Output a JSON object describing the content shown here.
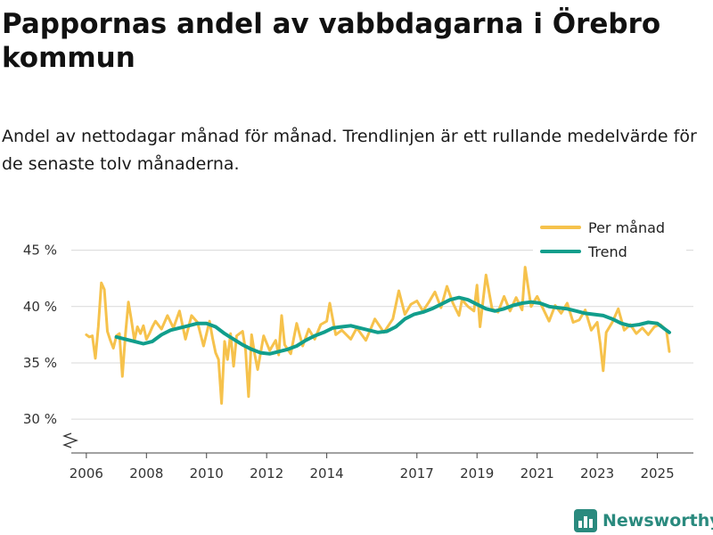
{
  "header": {
    "title": "Pappornas andel av vabbdagarna i Örebro kommun",
    "subtitle": "Andel av nettodagar månad för månad. Trendlinjen är ett rullande medelvärde för de senaste tolv månaderna."
  },
  "branding": {
    "name": "Newsworthy"
  },
  "colors": {
    "monthly": "#f6c24c",
    "trend": "#119e8c",
    "grid": "#d9d9d9",
    "brand": "#2a8a7e"
  },
  "chart_data": {
    "type": "line",
    "title": "Pappornas andel av vabbdagarna i Örebro kommun",
    "xlabel": "",
    "ylabel": "",
    "x_range": [
      2005.5,
      2026.2
    ],
    "ylim": [
      27,
      46
    ],
    "grid": true,
    "legend_position": "top-right",
    "y_ticks": [
      30,
      35,
      40,
      45
    ],
    "y_tick_labels": [
      "30 %",
      "35 %",
      "40 %",
      "45 %"
    ],
    "x_ticks": [
      2006,
      2008,
      2010,
      2012,
      2014,
      2017,
      2019,
      2021,
      2023,
      2025
    ],
    "x_tick_labels": [
      "2006",
      "2008",
      "2010",
      "2012",
      "2014",
      "2017",
      "2019",
      "2021",
      "2023",
      "2025"
    ],
    "series": [
      {
        "name": "Per månad",
        "x": [
          2006.0,
          2006.1,
          2006.2,
          2006.3,
          2006.4,
          2006.5,
          2006.6,
          2006.7,
          2006.8,
          2006.9,
          2007.0,
          2007.1,
          2007.2,
          2007.3,
          2007.4,
          2007.5,
          2007.6,
          2007.7,
          2007.8,
          2007.9,
          2008.0,
          2008.1,
          2008.2,
          2008.3,
          2008.5,
          2008.7,
          2008.9,
          2009.1,
          2009.3,
          2009.5,
          2009.7,
          2009.9,
          2010.1,
          2010.2,
          2010.3,
          2010.4,
          2010.5,
          2010.6,
          2010.7,
          2010.8,
          2010.9,
          2011.0,
          2011.2,
          2011.3,
          2011.4,
          2011.5,
          2011.6,
          2011.7,
          2011.9,
          2012.1,
          2012.3,
          2012.4,
          2012.5,
          2012.6,
          2012.8,
          2013.0,
          2013.2,
          2013.4,
          2013.6,
          2013.8,
          2014.0,
          2014.1,
          2014.3,
          2014.5,
          2014.8,
          2015.0,
          2015.3,
          2015.6,
          2015.9,
          2016.2,
          2016.4,
          2016.6,
          2016.8,
          2017.0,
          2017.2,
          2017.4,
          2017.6,
          2017.8,
          2018.0,
          2018.2,
          2018.4,
          2018.5,
          2018.7,
          2018.9,
          2019.0,
          2019.1,
          2019.3,
          2019.5,
          2019.7,
          2019.9,
          2020.1,
          2020.3,
          2020.5,
          2020.6,
          2020.8,
          2021.0,
          2021.2,
          2021.4,
          2021.6,
          2021.8,
          2022.0,
          2022.2,
          2022.4,
          2022.6,
          2022.8,
          2023.0,
          2023.1,
          2023.2,
          2023.3,
          2023.5,
          2023.7,
          2023.9,
          2024.1,
          2024.3,
          2024.5,
          2024.7,
          2024.9,
          2025.1,
          2025.3,
          2025.4
        ],
        "values": [
          37.5,
          37.3,
          37.4,
          35.4,
          38.2,
          42.1,
          41.5,
          37.8,
          37.0,
          36.3,
          37.4,
          37.6,
          33.8,
          37.5,
          40.4,
          38.8,
          37.0,
          38.2,
          37.6,
          38.3,
          37.1,
          37.6,
          38.2,
          38.7,
          38.0,
          39.2,
          38.1,
          39.6,
          37.1,
          39.2,
          38.6,
          36.5,
          38.7,
          37.2,
          35.9,
          35.3,
          31.4,
          36.9,
          35.3,
          37.6,
          34.7,
          37.4,
          37.8,
          36.1,
          32.0,
          37.5,
          35.8,
          34.4,
          37.4,
          36.1,
          37.0,
          35.7,
          39.2,
          36.6,
          35.8,
          38.5,
          36.5,
          38.0,
          37.1,
          38.4,
          38.7,
          40.3,
          37.5,
          37.9,
          37.1,
          38.1,
          37.0,
          38.9,
          37.7,
          38.9,
          41.4,
          39.3,
          40.2,
          40.5,
          39.6,
          40.4,
          41.3,
          39.9,
          41.8,
          40.3,
          39.2,
          40.6,
          40.0,
          39.6,
          41.9,
          38.2,
          42.8,
          39.8,
          39.5,
          40.9,
          39.6,
          40.8,
          39.7,
          43.5,
          40.0,
          40.9,
          39.8,
          38.7,
          40.1,
          39.4,
          40.3,
          38.6,
          38.8,
          39.7,
          37.9,
          38.6,
          36.7,
          34.3,
          37.7,
          38.6,
          39.8,
          37.9,
          38.4,
          37.6,
          38.1,
          37.5,
          38.2,
          38.4,
          37.9,
          36.0
        ]
      },
      {
        "name": "Trend",
        "x": [
          2007.0,
          2007.3,
          2007.6,
          2007.9,
          2008.2,
          2008.5,
          2008.8,
          2009.1,
          2009.4,
          2009.7,
          2010.0,
          2010.3,
          2010.6,
          2010.9,
          2011.2,
          2011.5,
          2011.8,
          2012.1,
          2012.4,
          2012.7,
          2013.0,
          2013.3,
          2013.6,
          2013.9,
          2014.2,
          2014.5,
          2014.8,
          2015.1,
          2015.4,
          2015.7,
          2016.0,
          2016.3,
          2016.6,
          2016.9,
          2017.2,
          2017.5,
          2017.8,
          2018.1,
          2018.4,
          2018.7,
          2019.0,
          2019.3,
          2019.6,
          2019.9,
          2020.2,
          2020.5,
          2020.8,
          2021.1,
          2021.4,
          2021.7,
          2022.0,
          2022.3,
          2022.6,
          2022.9,
          2023.2,
          2023.5,
          2023.8,
          2024.1,
          2024.4,
          2024.7,
          2025.0,
          2025.2,
          2025.4
        ],
        "values": [
          37.3,
          37.1,
          36.9,
          36.7,
          36.9,
          37.5,
          37.9,
          38.1,
          38.3,
          38.5,
          38.5,
          38.2,
          37.6,
          37.1,
          36.6,
          36.2,
          35.9,
          35.8,
          36.0,
          36.2,
          36.5,
          37.0,
          37.4,
          37.7,
          38.1,
          38.2,
          38.3,
          38.1,
          37.9,
          37.7,
          37.8,
          38.2,
          38.9,
          39.3,
          39.5,
          39.8,
          40.2,
          40.6,
          40.8,
          40.6,
          40.2,
          39.8,
          39.6,
          39.8,
          40.1,
          40.3,
          40.4,
          40.3,
          40.0,
          39.9,
          39.8,
          39.6,
          39.4,
          39.3,
          39.2,
          38.9,
          38.5,
          38.3,
          38.4,
          38.6,
          38.5,
          38.1,
          37.7
        ]
      }
    ]
  }
}
